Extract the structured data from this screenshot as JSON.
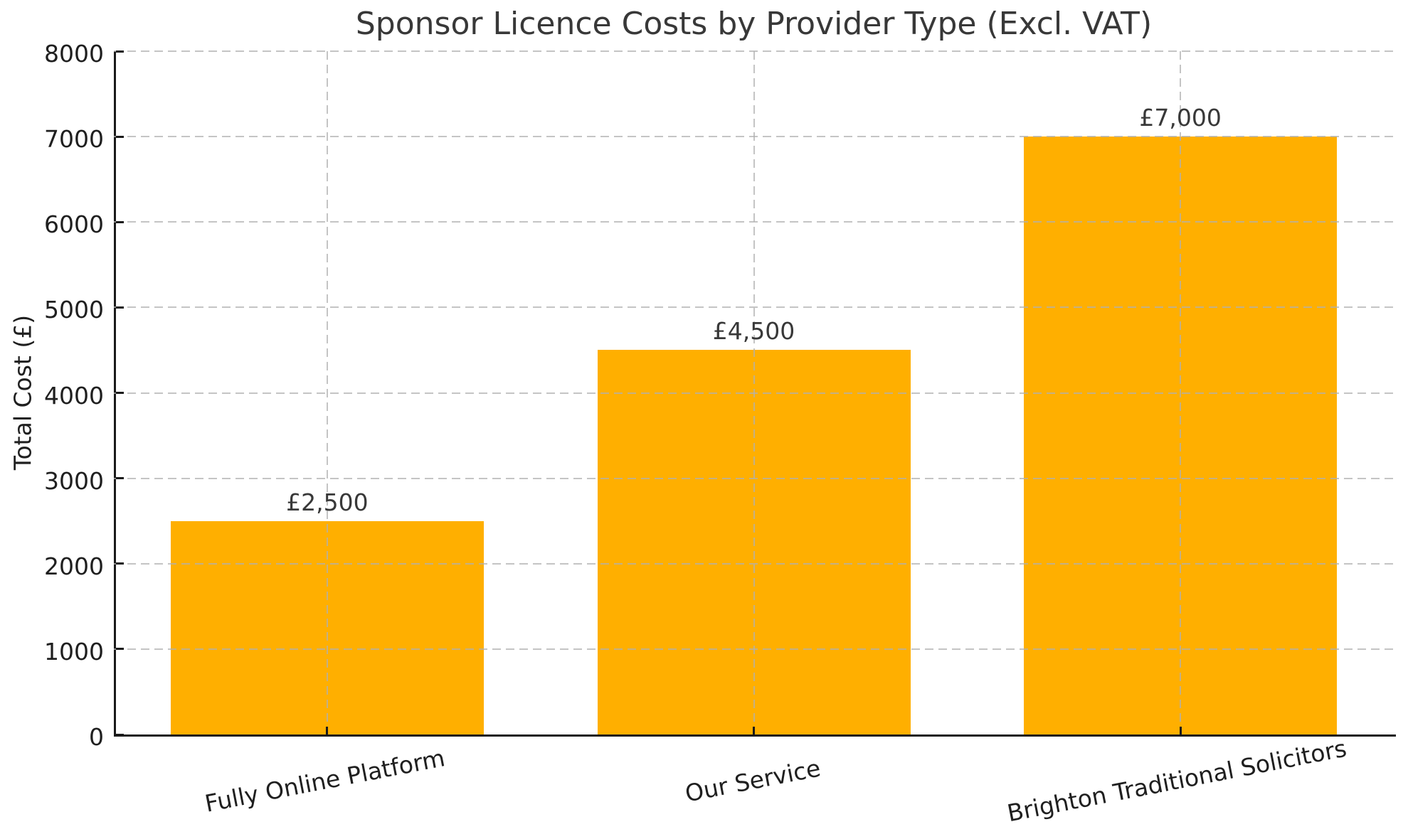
{
  "chart_data": {
    "type": "bar",
    "title": "Sponsor Licence Costs by Provider Type (Excl. VAT)",
    "ylabel": "Total Cost (£)",
    "xlabel": "",
    "categories": [
      "Fully Online Platform",
      "Our Service",
      "Brighton Traditional Solicitors"
    ],
    "values": [
      2500,
      4500,
      7000
    ],
    "value_labels": [
      "£2,500",
      "£4,500",
      "£7,000"
    ],
    "ylim": [
      0,
      8000
    ],
    "yticks": [
      0,
      1000,
      2000,
      3000,
      4000,
      5000,
      6000,
      7000,
      8000
    ],
    "ytick_labels": [
      "0",
      "1000",
      "2000",
      "3000",
      "4000",
      "5000",
      "6000",
      "7000",
      "8000"
    ],
    "grid": {
      "visible": true,
      "style": "dashed",
      "axes": "both",
      "drawn_above_bars": true
    },
    "legend": null,
    "colors": {
      "bar": "#FFAF00",
      "grid": "#b1b1b1",
      "axis": "#1a1a1a",
      "tick_text": "#1f1f1f",
      "title_text": "#383838",
      "value_text": "#383838",
      "background": "#ffffff"
    }
  }
}
